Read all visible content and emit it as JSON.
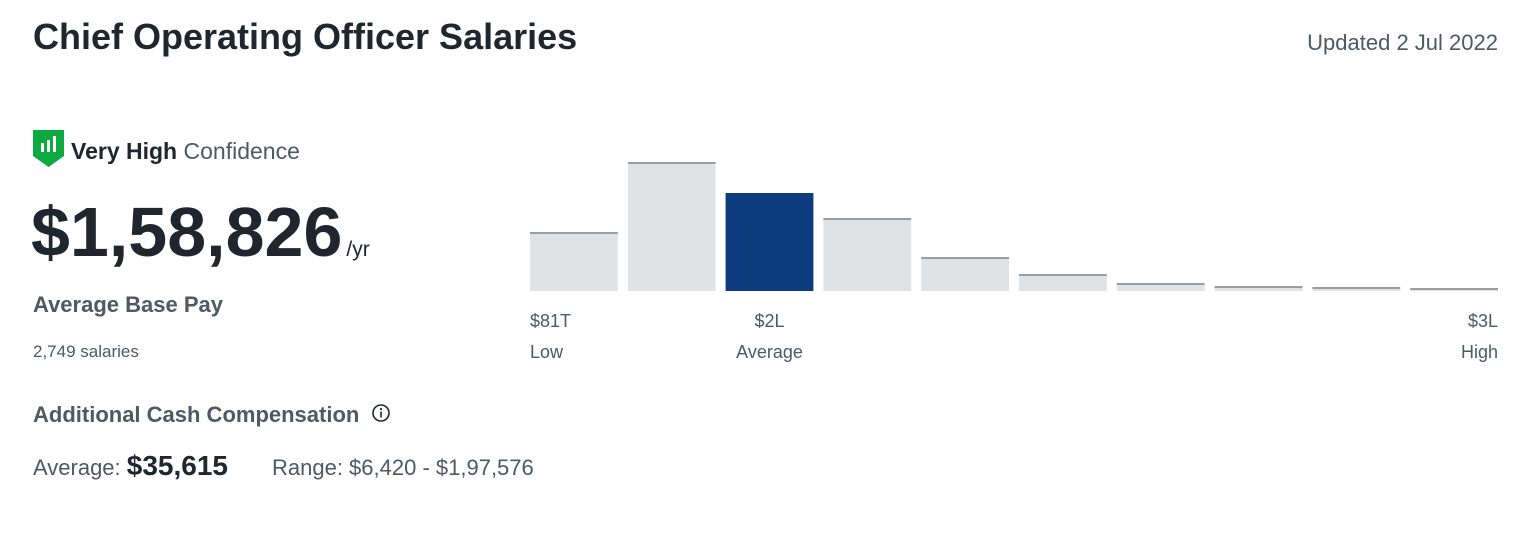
{
  "header": {
    "title": "Chief Operating Officer Salaries",
    "updated": "Updated 2 Jul 2022"
  },
  "confidence": {
    "level": "Very High",
    "word": "Confidence"
  },
  "pay": {
    "amount": "$1,58,826",
    "unit": "/yr",
    "label": "Average Base Pay",
    "count": "2,749 salaries"
  },
  "histogram": {
    "values": [
      58,
      128,
      98,
      72,
      33,
      16,
      7,
      4,
      3,
      2
    ],
    "ylim": [
      0,
      128
    ],
    "color": "#e1e2e5",
    "edge_color": "#9a9da3",
    "highlight_color": "#0d3c7f",
    "highlight": 2,
    "labels": [
      {
        "value": "$81T",
        "caption": "Low"
      },
      {
        "value": "$2L",
        "caption": "Average"
      },
      {
        "value": "$3L",
        "caption": "High"
      }
    ]
  },
  "additional": {
    "title": "Additional Cash Compensation",
    "average_label": "Average:",
    "average": "$35,615",
    "range": "Range: $6,420 - $1,97,576"
  }
}
